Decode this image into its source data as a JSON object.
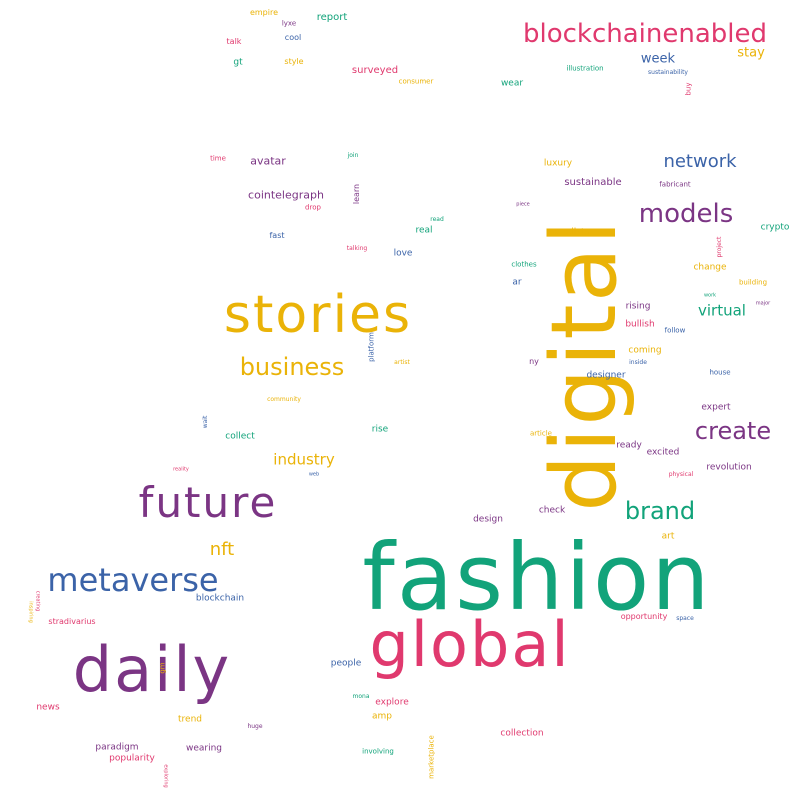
{
  "palette": {
    "green": "#12a37a",
    "pink": "#e0396e",
    "yellow": "#eab308",
    "purple": "#7b3584",
    "blue": "#3b63a8",
    "background": "#ffffff"
  },
  "words": [
    {
      "text": "fashion",
      "color": "green"
    },
    {
      "text": "digital",
      "color": "yellow"
    },
    {
      "text": "global",
      "color": "pink"
    },
    {
      "text": "daily",
      "color": "purple"
    },
    {
      "text": "stories",
      "color": "yellow"
    },
    {
      "text": "future",
      "color": "purple"
    },
    {
      "text": "metaverse",
      "color": "blue"
    },
    {
      "text": "blockchainenabled",
      "color": "pink"
    },
    {
      "text": "models",
      "color": "purple"
    },
    {
      "text": "business",
      "color": "yellow"
    },
    {
      "text": "create",
      "color": "purple"
    },
    {
      "text": "brand",
      "color": "green"
    },
    {
      "text": "network",
      "color": "blue"
    },
    {
      "text": "nft",
      "color": "yellow"
    },
    {
      "text": "industry",
      "color": "yellow"
    },
    {
      "text": "virtual",
      "color": "green"
    },
    {
      "text": "week",
      "color": "blue"
    },
    {
      "text": "stay",
      "color": "yellow"
    },
    {
      "text": "cointelegraph",
      "color": "purple"
    },
    {
      "text": "avatar",
      "color": "purple"
    },
    {
      "text": "sustainable",
      "color": "purple"
    },
    {
      "text": "report",
      "color": "green"
    },
    {
      "text": "surveyed",
      "color": "pink"
    },
    {
      "text": "wear",
      "color": "green"
    },
    {
      "text": "luxury",
      "color": "yellow"
    },
    {
      "text": "panelists",
      "color": "yellow"
    },
    {
      "text": "crypto",
      "color": "green"
    },
    {
      "text": "change",
      "color": "yellow"
    },
    {
      "text": "love",
      "color": "blue"
    },
    {
      "text": "real",
      "color": "green"
    },
    {
      "text": "rising",
      "color": "purple"
    },
    {
      "text": "bullish",
      "color": "pink"
    },
    {
      "text": "coming",
      "color": "yellow"
    },
    {
      "text": "designer",
      "color": "blue"
    },
    {
      "text": "expert",
      "color": "purple"
    },
    {
      "text": "collect",
      "color": "green"
    },
    {
      "text": "rise",
      "color": "green"
    },
    {
      "text": "ready",
      "color": "purple"
    },
    {
      "text": "excited",
      "color": "purple"
    },
    {
      "text": "revolution",
      "color": "purple"
    },
    {
      "text": "design",
      "color": "purple"
    },
    {
      "text": "check",
      "color": "purple"
    },
    {
      "text": "art",
      "color": "yellow"
    },
    {
      "text": "blockchain",
      "color": "blue"
    },
    {
      "text": "people",
      "color": "blue"
    },
    {
      "text": "explore",
      "color": "pink"
    },
    {
      "text": "amp",
      "color": "yellow"
    },
    {
      "text": "collection",
      "color": "pink"
    },
    {
      "text": "news",
      "color": "pink"
    },
    {
      "text": "trend",
      "color": "yellow"
    },
    {
      "text": "wearing",
      "color": "purple"
    },
    {
      "text": "popularity",
      "color": "pink"
    },
    {
      "text": "paradigm",
      "color": "purple"
    },
    {
      "text": "stradivarius",
      "color": "pink"
    },
    {
      "text": "opportunity",
      "color": "pink"
    },
    {
      "text": "ar",
      "color": "blue"
    },
    {
      "text": "ny",
      "color": "purple"
    },
    {
      "text": "gt",
      "color": "green"
    },
    {
      "text": "style",
      "color": "yellow"
    },
    {
      "text": "talk",
      "color": "pink"
    },
    {
      "text": "cool",
      "color": "blue"
    },
    {
      "text": "empire",
      "color": "yellow"
    },
    {
      "text": "lyxe",
      "color": "purple"
    },
    {
      "text": "consumer",
      "color": "yellow"
    },
    {
      "text": "illustration",
      "color": "green"
    },
    {
      "text": "sustainability",
      "color": "blue"
    },
    {
      "text": "buy",
      "color": "pink"
    },
    {
      "text": "time",
      "color": "pink"
    },
    {
      "text": "join",
      "color": "green"
    },
    {
      "text": "learn",
      "color": "purple"
    },
    {
      "text": "drop",
      "color": "pink"
    },
    {
      "text": "fast",
      "color": "blue"
    },
    {
      "text": "talking",
      "color": "pink"
    },
    {
      "text": "read",
      "color": "green"
    },
    {
      "text": "clothes",
      "color": "green"
    },
    {
      "text": "piece",
      "color": "purple"
    },
    {
      "text": "fabricant",
      "color": "purple"
    },
    {
      "text": "project",
      "color": "pink"
    },
    {
      "text": "building",
      "color": "yellow"
    },
    {
      "text": "major",
      "color": "purple"
    },
    {
      "text": "work",
      "color": "green"
    },
    {
      "text": "follow",
      "color": "blue"
    },
    {
      "text": "inside",
      "color": "blue"
    },
    {
      "text": "house",
      "color": "blue"
    },
    {
      "text": "platform",
      "color": "blue"
    },
    {
      "text": "artist",
      "color": "yellow"
    },
    {
      "text": "community",
      "color": "yellow"
    },
    {
      "text": "wait",
      "color": "blue"
    },
    {
      "text": "reality",
      "color": "pink"
    },
    {
      "text": "web",
      "color": "blue"
    },
    {
      "text": "article",
      "color": "yellow"
    },
    {
      "text": "physical",
      "color": "pink"
    },
    {
      "text": "space",
      "color": "blue"
    },
    {
      "text": "gm",
      "color": "yellow"
    },
    {
      "text": "mona",
      "color": "green"
    },
    {
      "text": "involving",
      "color": "green"
    },
    {
      "text": "marketplace",
      "color": "yellow"
    },
    {
      "text": "huge",
      "color": "purple"
    },
    {
      "text": "exploring",
      "color": "pink"
    },
    {
      "text": "creating",
      "color": "pink"
    },
    {
      "text": "inspiring",
      "color": "yellow"
    }
  ]
}
